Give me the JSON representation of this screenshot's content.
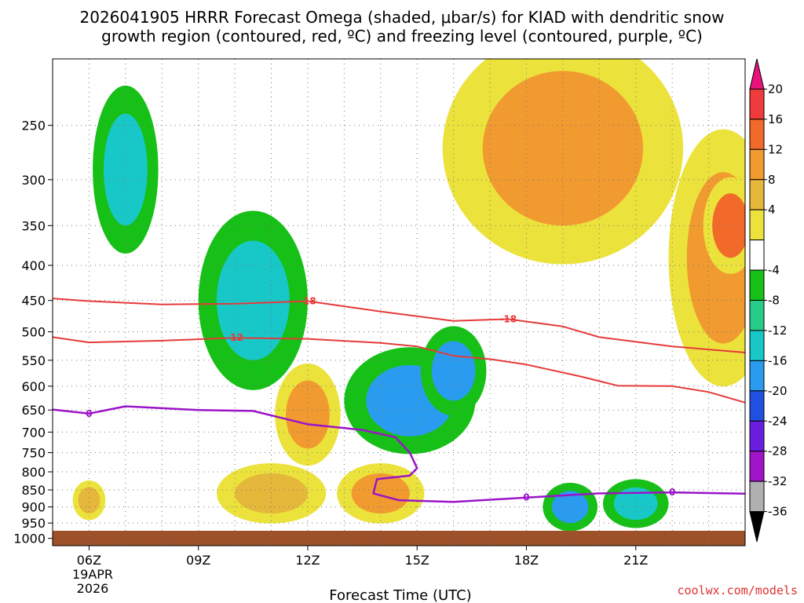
{
  "title": {
    "line1": "2026041905 HRRR Forecast Omega (shaded, μbar/s) for KIAD with dendritic snow",
    "line2": "growth region (contoured, red, ºC) and freezing level (contoured, purple, ºC)"
  },
  "credit": "coolwx.com/models",
  "chart_data": {
    "type": "heatmap",
    "xlabel": "Forecast Time (UTC)",
    "x_ticks": [
      {
        "hour": 6,
        "label": "06Z"
      },
      {
        "hour": 9,
        "label": "09Z"
      },
      {
        "hour": 12,
        "label": "12Z"
      },
      {
        "hour": 15,
        "label": "15Z"
      },
      {
        "hour": 18,
        "label": "18Z"
      },
      {
        "hour": 21,
        "label": "21Z"
      }
    ],
    "x_date_label": [
      "19APR",
      "2026"
    ],
    "xlim": [
      5.0,
      24.0
    ],
    "y_ticks": [
      250,
      300,
      350,
      400,
      450,
      500,
      550,
      600,
      650,
      700,
      750,
      800,
      850,
      900,
      950,
      1000
    ],
    "ylim": [
      200,
      1025
    ],
    "y_scale": "log",
    "grid": true,
    "colorbar": {
      "labels": [
        "20",
        "16",
        "12",
        "8",
        "4",
        "-4",
        "-8",
        "-12",
        "-16",
        "-20",
        "-24",
        "-28",
        "-32",
        "-36"
      ],
      "colors": [
        "#e8127a",
        "#ef3b3b",
        "#f26a2a",
        "#f09a30",
        "#e5b73a",
        "#ece23c",
        "#ffffff",
        "#16c016",
        "#28cc88",
        "#18c8c8",
        "#2a9cf0",
        "#2050e0",
        "#6a1ee0",
        "#a014c8",
        "#b0b0b0",
        "#000000"
      ]
    },
    "omega_regions": [
      {
        "cx": 19.0,
        "cy": 270,
        "rx": 2.2,
        "ry": 80,
        "value": 12
      },
      {
        "cx": 23.4,
        "cy": 390,
        "rx": 1.0,
        "ry": 130,
        "value": 12
      },
      {
        "cx": 23.6,
        "cy": 350,
        "rx": 0.5,
        "ry": 40,
        "value": 16
      },
      {
        "cx": 12.0,
        "cy": 660,
        "rx": 0.6,
        "ry": 80,
        "value": 12
      },
      {
        "cx": 14.0,
        "cy": 860,
        "rx": 0.8,
        "ry": 60,
        "value": 12
      },
      {
        "cx": 11.0,
        "cy": 860,
        "rx": 1.0,
        "ry": 60,
        "value": 8
      },
      {
        "cx": 6.0,
        "cy": 880,
        "rx": 0.3,
        "ry": 40,
        "value": 8
      },
      {
        "cx": 7.0,
        "cy": 290,
        "rx": 0.6,
        "ry": 60,
        "value": -12
      },
      {
        "cx": 10.5,
        "cy": 450,
        "rx": 1.0,
        "ry": 100,
        "value": -12
      },
      {
        "cx": 14.8,
        "cy": 630,
        "rx": 1.2,
        "ry": 80,
        "value": -16
      },
      {
        "cx": 16.0,
        "cy": 570,
        "rx": 0.6,
        "ry": 60,
        "value": -16
      },
      {
        "cx": 19.2,
        "cy": 900,
        "rx": 0.5,
        "ry": 50,
        "value": -16
      },
      {
        "cx": 21.0,
        "cy": 890,
        "rx": 0.6,
        "ry": 50,
        "value": -12
      }
    ],
    "series": [
      {
        "contour_value": "-18",
        "color": "#e63a3a",
        "x": [
          5.0,
          6.0,
          8.0,
          10.0,
          12.0,
          14.0,
          16.0,
          17.5,
          19.0,
          20.0,
          22.0,
          24.0
        ],
        "y": [
          447,
          451,
          456,
          455,
          451,
          467,
          482,
          479,
          491,
          509,
          525,
          536
        ]
      },
      {
        "contour_value": "-12",
        "color": "#e63a3a",
        "x": [
          5.0,
          6.0,
          8.0,
          10.0,
          12.0,
          14.0,
          15.0,
          16.0,
          17.0,
          18.0,
          19.5,
          20.5,
          22.0,
          23.0,
          24.0
        ],
        "y": [
          509,
          518,
          515,
          510,
          512,
          519,
          525,
          542,
          548,
          558,
          581,
          599,
          600,
          612,
          634
        ]
      },
      {
        "contour_value": "0",
        "color": "#9a14c8",
        "x": [
          5.0,
          6.0,
          7.0,
          9.0,
          10.5,
          12.0,
          13.5,
          14.4,
          14.8,
          15.0,
          14.8,
          13.9,
          13.8,
          14.5,
          16.0,
          18.0,
          20.0,
          22.0,
          24.0
        ],
        "y": [
          649,
          658,
          642,
          650,
          652,
          682,
          695,
          712,
          750,
          790,
          810,
          820,
          860,
          880,
          885,
          872,
          860,
          857,
          861
        ]
      }
    ]
  }
}
